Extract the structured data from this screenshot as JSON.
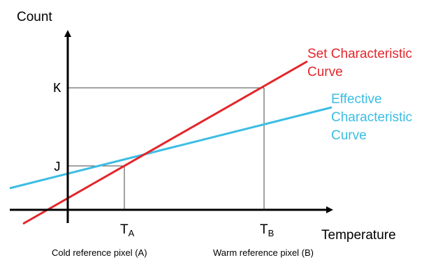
{
  "axes": {
    "y_label": "Count",
    "x_label": "Temperature"
  },
  "ticks": {
    "k": "K",
    "j": "J",
    "ta_base": "T",
    "ta_sub": "A",
    "tb_base": "T",
    "tb_sub": "B"
  },
  "curves": {
    "set": {
      "line1": "Set Characteristic",
      "line2": "Curve",
      "color": "#e3262b"
    },
    "effective": {
      "line1": "Effective",
      "line2": "Characteristic",
      "line3": "Curve",
      "color": "#3bbde4"
    }
  },
  "captions": {
    "cold": "Cold reference pixel (A)",
    "warm": "Warm reference pixel (B)"
  }
}
